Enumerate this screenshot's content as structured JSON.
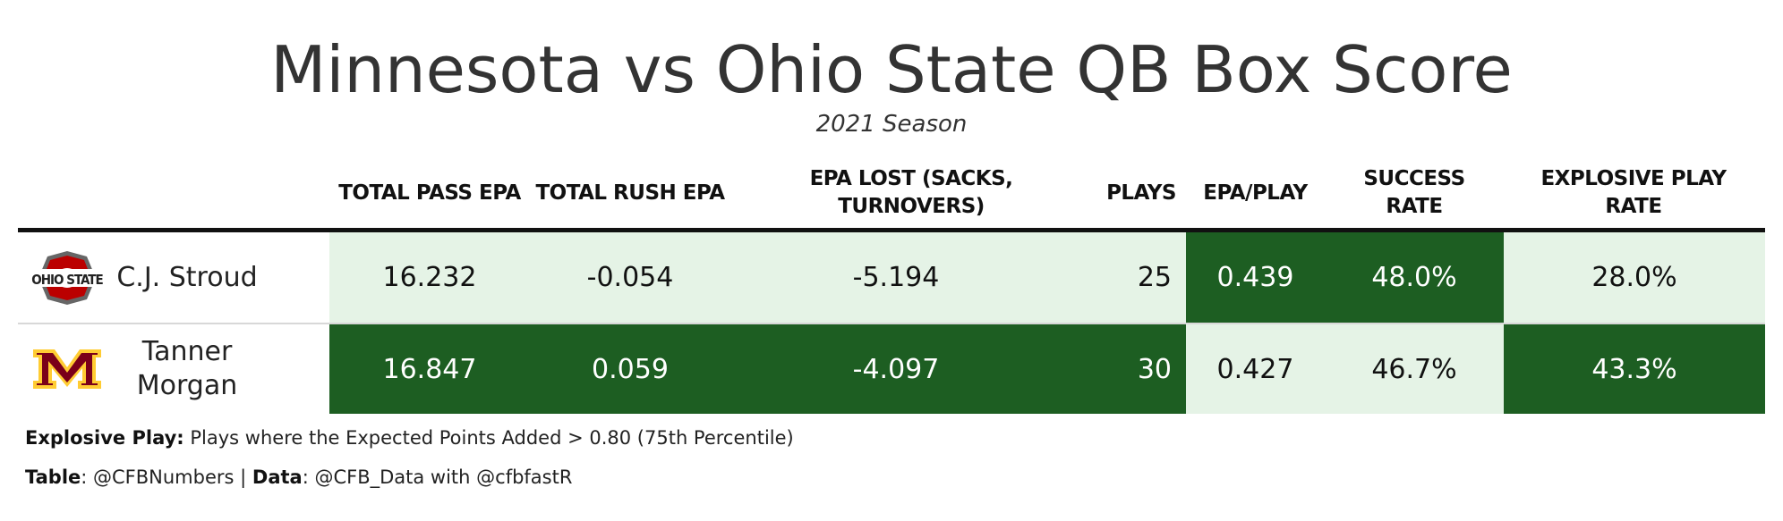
{
  "title": "Minnesota vs Ohio State QB Box Score",
  "subtitle": "2021 Season",
  "columns": [
    "TOTAL PASS EPA",
    "TOTAL RUSH EPA",
    "EPA LOST (SACKS, TURNOVERS)",
    "PLAYS",
    "EPA/PLAY",
    "SUCCESS RATE",
    "EXPLOSIVE PLAY RATE"
  ],
  "colors": {
    "dark_green": "#1d5e22",
    "light_green": "#e5f3e6",
    "osu_red": "#bb0000",
    "osu_gray": "#666666",
    "gopher_maroon": "#7a0019",
    "gopher_gold": "#ffcc33"
  },
  "rows": [
    {
      "logo_icon": "ohio-state-logo-icon",
      "logo_text": "OHIO STATE",
      "player": "C.J. Stroud",
      "pass_epa": "16.232",
      "rush_epa": "-0.054",
      "epa_lost": "-5.194",
      "plays": "25",
      "epa_per_play": "0.439",
      "success_rate": "48.0%",
      "explosive_rate": "28.0%"
    },
    {
      "logo_icon": "minnesota-logo-icon",
      "logo_text": "M",
      "player": "Tanner Morgan",
      "pass_epa": "16.847",
      "rush_epa": "0.059",
      "epa_lost": "-4.097",
      "plays": "30",
      "epa_per_play": "0.427",
      "success_rate": "46.7%",
      "explosive_rate": "43.3%"
    }
  ],
  "footnotes": {
    "explosive_label": "Explosive Play:",
    "explosive_text": " Plays where the Expected Points Added > 0.80 (75th Percentile)",
    "table_label": "Table",
    "table_text": ": @CFBNumbers | ",
    "data_label": "Data",
    "data_text": ": @CFB_Data with @cfbfastR"
  }
}
